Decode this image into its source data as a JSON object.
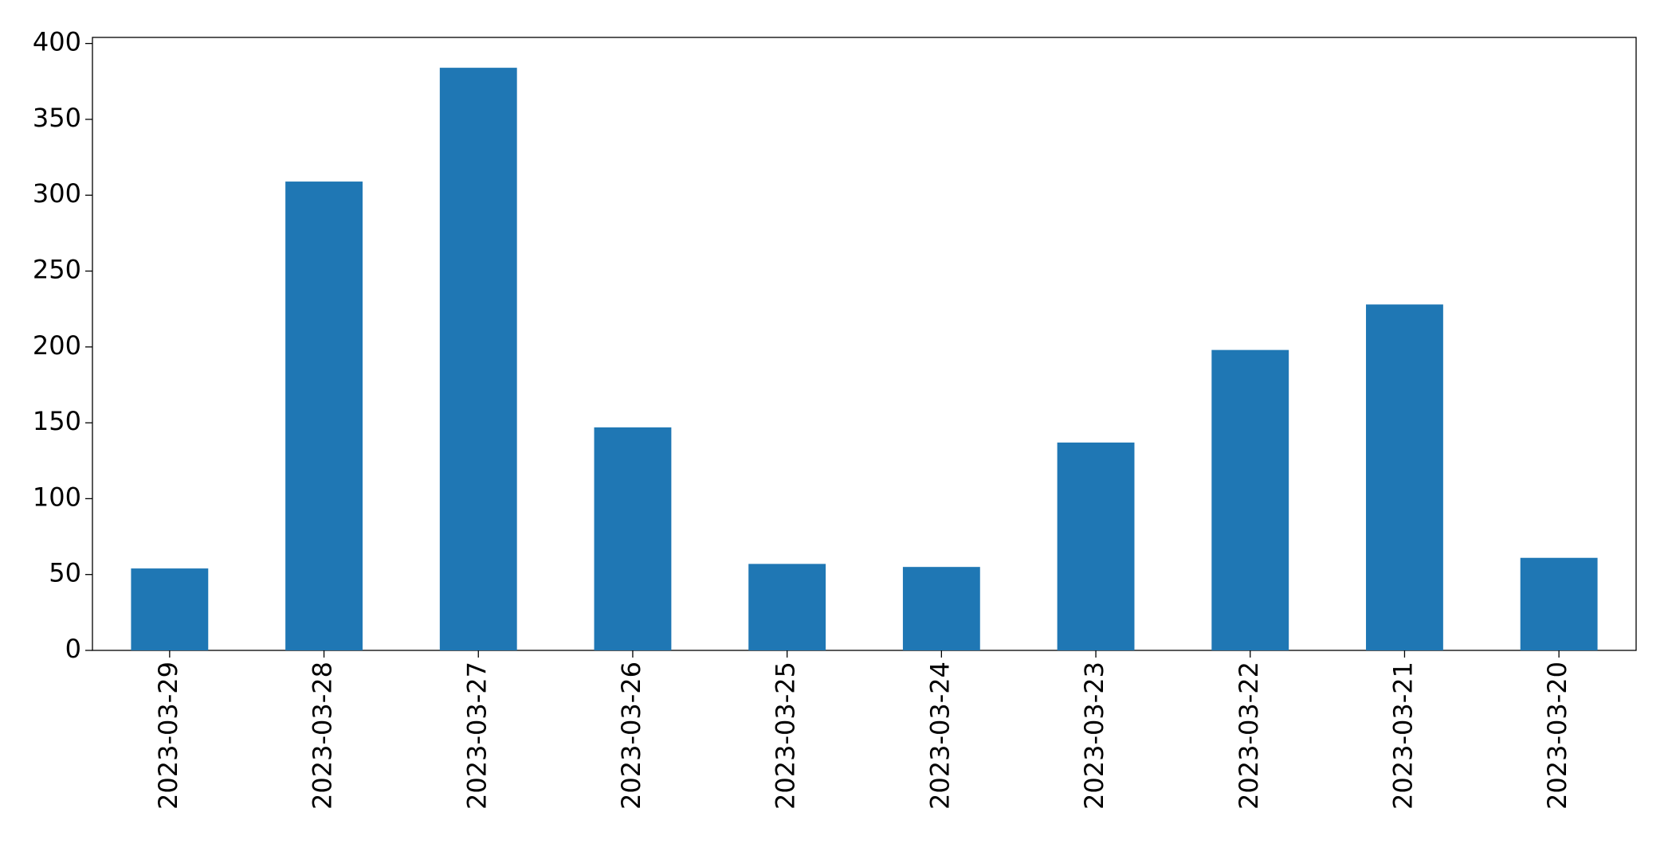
{
  "chart_data": {
    "type": "bar",
    "categories": [
      "2023-03-29",
      "2023-03-28",
      "2023-03-27",
      "2023-03-26",
      "2023-03-25",
      "2023-03-24",
      "2023-03-23",
      "2023-03-22",
      "2023-03-21",
      "2023-03-20"
    ],
    "values": [
      54,
      309,
      384,
      147,
      57,
      55,
      137,
      198,
      228,
      61
    ],
    "color": "#1f77b4",
    "ylim": [
      0,
      404
    ],
    "yticks": [
      0,
      50,
      100,
      150,
      200,
      250,
      300,
      350,
      400
    ],
    "grid": false
  }
}
